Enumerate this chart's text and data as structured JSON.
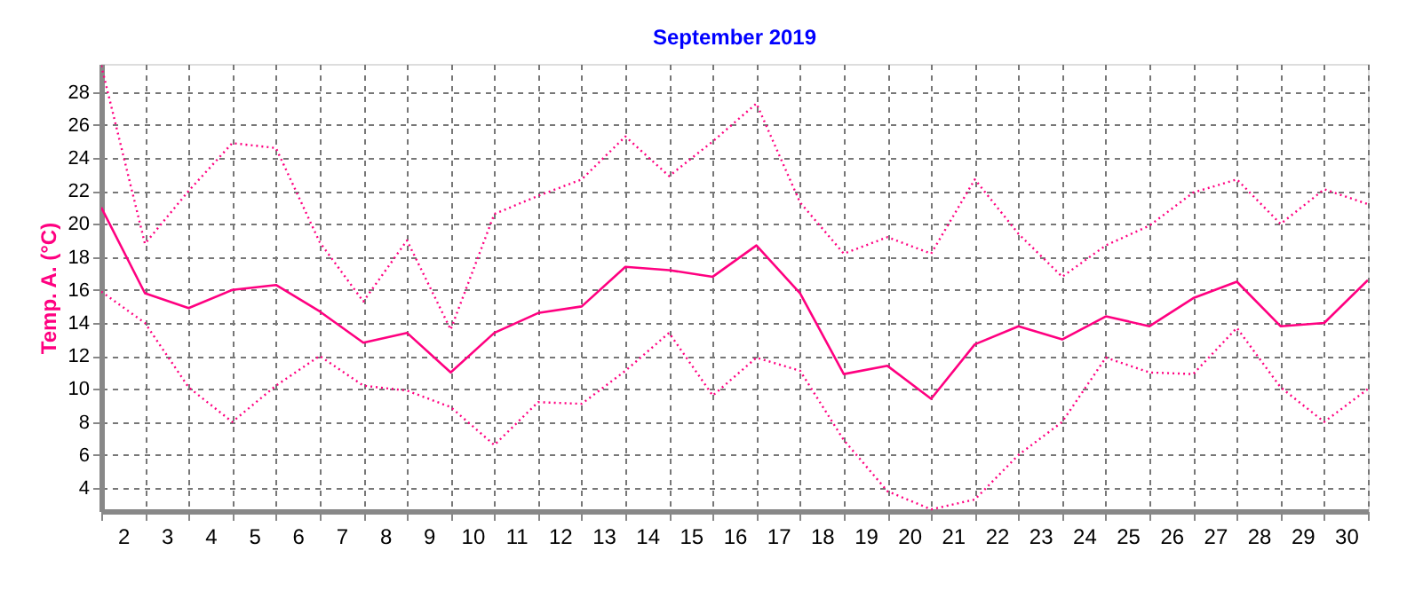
{
  "chart_data": {
    "type": "line",
    "title": "September 2019",
    "ylabel": "Temp. A. (°C)",
    "x": [
      1.5,
      2.5,
      3.5,
      4.5,
      5.5,
      6.5,
      7.5,
      8.5,
      9.5,
      10.5,
      11.5,
      12.5,
      13.5,
      14.5,
      15.5,
      16.5,
      17.5,
      18.5,
      19.5,
      20.5,
      21.5,
      22.5,
      23.5,
      24.5,
      25.5,
      26.5,
      27.5,
      28.5,
      29.5,
      30.5
    ],
    "series": [
      {
        "color": "#ff0080",
        "line_style": "dotted",
        "values": [
          29.6,
          18.8,
          22.0,
          24.9,
          24.6,
          18.9,
          15.3,
          19.0,
          13.6,
          20.6,
          21.7,
          22.7,
          25.3,
          22.9,
          25.0,
          27.3,
          21.3,
          18.2,
          19.2,
          18.2,
          22.7,
          19.4,
          16.8,
          18.7,
          19.9,
          21.9,
          22.7,
          20.0,
          22.1,
          21.2
        ]
      },
      {
        "color": "#ff0080",
        "line_style": "solid",
        "values": [
          21.0,
          15.8,
          14.9,
          16.0,
          16.3,
          14.7,
          12.8,
          13.4,
          11.0,
          13.4,
          14.6,
          15.0,
          17.4,
          17.2,
          16.8,
          18.7,
          15.8,
          10.9,
          11.4,
          9.4,
          12.7,
          13.8,
          13.0,
          14.4,
          13.8,
          15.5,
          16.5,
          13.8,
          14.0,
          16.6
        ]
      },
      {
        "color": "#ff0080",
        "line_style": "dotted",
        "values": [
          15.9,
          14.0,
          10.1,
          8.0,
          10.2,
          12.0,
          10.2,
          9.9,
          8.9,
          6.6,
          9.2,
          9.1,
          11.1,
          13.4,
          9.6,
          11.9,
          11.1,
          6.9,
          3.8,
          2.7,
          3.3,
          6.0,
          8.0,
          11.9,
          11.0,
          10.9,
          13.7,
          10.1,
          8.0,
          10.0
        ]
      }
    ],
    "xlim": [
      1.5,
      30.5
    ],
    "xticks": [
      {
        "value": 1.5,
        "label": null
      },
      2,
      {
        "value": 2.5,
        "label": null
      },
      3,
      {
        "value": 3.5,
        "label": null
      },
      4,
      {
        "value": 4.5,
        "label": null
      },
      5,
      {
        "value": 5.5,
        "label": null
      },
      6,
      {
        "value": 6.5,
        "label": null
      },
      7,
      {
        "value": 7.5,
        "label": null
      },
      8,
      {
        "value": 8.5,
        "label": null
      },
      9,
      {
        "value": 9.5,
        "label": null
      },
      10,
      {
        "value": 10.5,
        "label": null
      },
      11,
      {
        "value": 11.5,
        "label": null
      },
      12,
      {
        "value": 12.5,
        "label": null
      },
      13,
      {
        "value": 13.5,
        "label": null
      },
      14,
      {
        "value": 14.5,
        "label": null
      },
      15,
      {
        "value": 15.5,
        "label": null
      },
      16,
      {
        "value": 16.5,
        "label": null
      },
      17,
      {
        "value": 17.5,
        "label": null
      },
      18,
      {
        "value": 18.5,
        "label": null
      },
      19,
      {
        "value": 19.5,
        "label": null
      },
      20,
      {
        "value": 20.5,
        "label": null
      },
      21,
      {
        "value": 21.5,
        "label": null
      },
      22,
      {
        "value": 22.5,
        "label": null
      },
      23,
      {
        "value": 23.5,
        "label": null
      },
      24,
      {
        "value": 24.5,
        "label": null
      },
      25,
      {
        "value": 25.5,
        "label": null
      },
      26,
      {
        "value": 26.5,
        "label": null
      },
      27,
      {
        "value": 27.5,
        "label": null
      },
      28,
      {
        "value": 28.5,
        "label": null
      },
      29,
      {
        "value": 29.5,
        "label": null
      },
      30,
      {
        "value": 30.5,
        "label": null
      }
    ],
    "ylim": [
      2.6,
      29.7
    ],
    "yticks": [
      4,
      6,
      8,
      10,
      12,
      14,
      16,
      18,
      20,
      22,
      24,
      26,
      28
    ],
    "grid": true,
    "marker": "none"
  }
}
